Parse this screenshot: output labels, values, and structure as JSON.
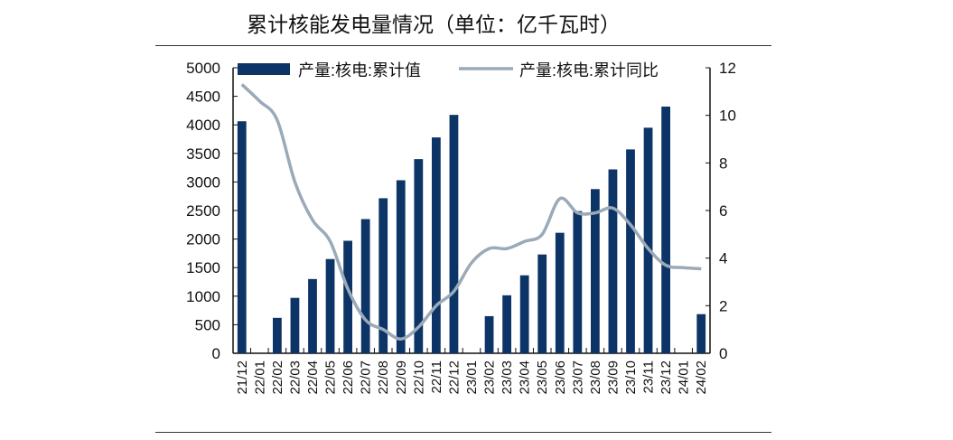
{
  "title": "累计核能发电量情况（单位：亿千瓦时）",
  "chart_data": {
    "type": "bar+line",
    "title": "累计核能发电量情况（单位：亿千瓦时）",
    "categories": [
      "21/12",
      "22/01",
      "22/02",
      "22/03",
      "22/04",
      "22/05",
      "22/06",
      "22/07",
      "22/08",
      "22/09",
      "22/10",
      "22/11",
      "22/12",
      "23/01",
      "23/02",
      "23/03",
      "23/04",
      "23/05",
      "23/06",
      "23/07",
      "23/08",
      "23/09",
      "23/10",
      "23/11",
      "23/12",
      "24/01",
      "24/02"
    ],
    "series": [
      {
        "name": "产量:核电:累计值",
        "type": "bar",
        "axis": "left",
        "color": "#0d3466",
        "values": [
          4063,
          null,
          620,
          970,
          1300,
          1650,
          1970,
          2350,
          2715,
          3030,
          3400,
          3780,
          4175,
          null,
          650,
          1015,
          1365,
          1730,
          2110,
          2490,
          2875,
          3220,
          3570,
          3950,
          4320,
          null,
          685
        ]
      },
      {
        "name": "产量:核电:累计同比",
        "type": "line",
        "axis": "right",
        "color": "#9aaab8",
        "values": [
          11.3,
          10.6,
          9.8,
          7.2,
          5.6,
          4.7,
          2.7,
          1.4,
          1.0,
          0.6,
          1.1,
          2.0,
          2.6,
          3.8,
          4.4,
          4.4,
          4.7,
          5.0,
          6.5,
          5.9,
          5.9,
          6.1,
          5.4,
          4.4,
          3.7,
          3.6,
          3.55
        ]
      }
    ],
    "left_axis": {
      "range": [
        0,
        5000
      ],
      "ticks": [
        0,
        500,
        1000,
        1500,
        2000,
        2500,
        3000,
        3500,
        4000,
        4500,
        5000
      ]
    },
    "right_axis": {
      "range": [
        0,
        12
      ],
      "ticks": [
        0,
        2,
        4,
        6,
        8,
        10,
        12
      ]
    },
    "legend": "top",
    "grid": false
  }
}
